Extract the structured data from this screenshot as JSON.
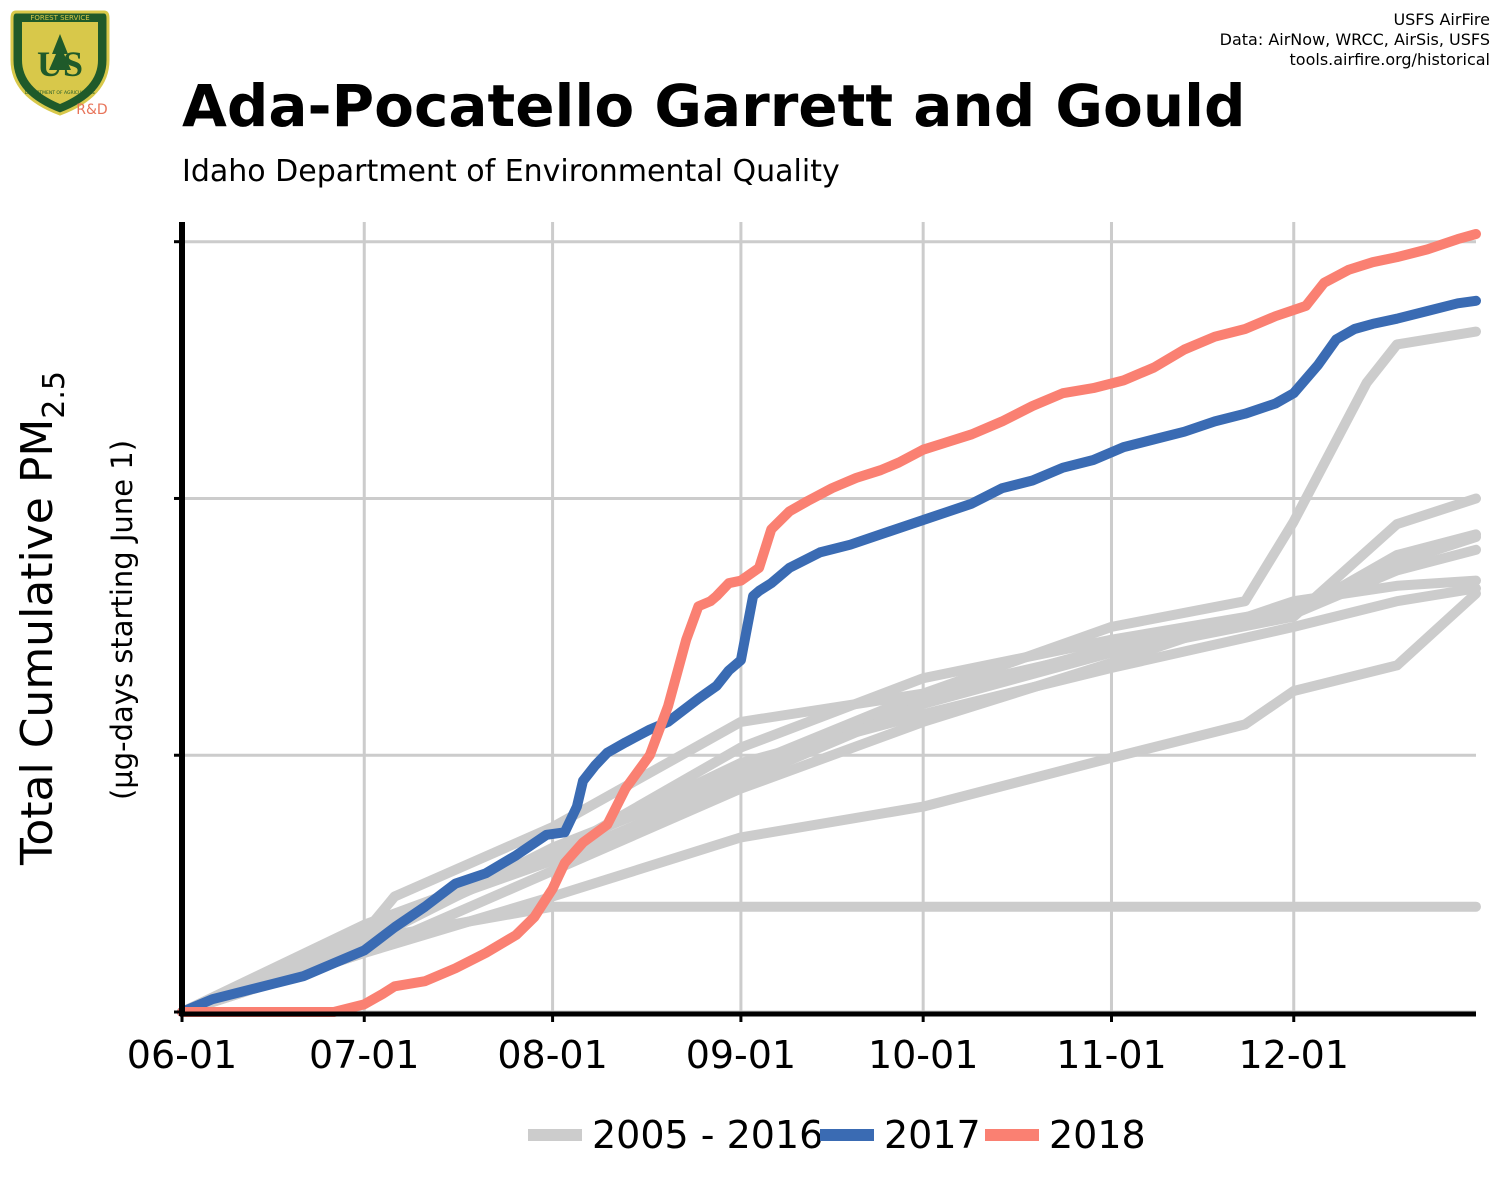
{
  "header": {
    "title": "Ada-Pocatello Garrett and Gould",
    "subtitle": "Idaho Department of Environmental Quality",
    "credits": [
      "USFS AirFire",
      "Data: AirNow, WRCC, AirSis, USFS",
      "tools.airfire.org/historical"
    ],
    "logo": {
      "top_text": "FOREST SERVICE",
      "letters": "US",
      "bottom_text": "DEPARTMENT OF AGRICULTURE",
      "tag": "R&D"
    }
  },
  "chart_data": {
    "type": "line",
    "title": "Ada-Pocatello Garrett and Gould",
    "subtitle": "Idaho Department of Environmental Quality",
    "ylabel_main": "Total Cumulative PM",
    "ylabel_sub": "2.5",
    "ylabel2": "(µg-days starting June 1)",
    "x_ticks": [
      "06-01",
      "07-01",
      "08-01",
      "09-01",
      "10-01",
      "11-01",
      "12-01"
    ],
    "x_tick_days": [
      0,
      30,
      61,
      92,
      122,
      153,
      183
    ],
    "xlim": [
      0,
      213
    ],
    "ylim": [
      0,
      3.03
    ],
    "y_gridlines": [
      0,
      1,
      2,
      3
    ],
    "y_tick_labels_shown": false,
    "grid": true,
    "legend": {
      "position": "bottom",
      "entries": [
        "2005 - 2016",
        "2017",
        "2018"
      ]
    },
    "colors": {
      "historical": "#cccccc",
      "2017": "#3a6bb3",
      "2018": "#fa8072"
    },
    "series": [
      {
        "name": "2018",
        "color": "#fa8072",
        "x": [
          0,
          25,
          30,
          33,
          35,
          40,
          45,
          50,
          55,
          58,
          61,
          63,
          66,
          70,
          73,
          77,
          80,
          83,
          85,
          87,
          88,
          90,
          92,
          95,
          97,
          100,
          103,
          107,
          111,
          115,
          118,
          122,
          126,
          130,
          135,
          140,
          145,
          150,
          155,
          160,
          165,
          170,
          175,
          180,
          185,
          188,
          192,
          196,
          200,
          205,
          210,
          213
        ],
        "y": [
          0,
          0,
          0.03,
          0.07,
          0.1,
          0.12,
          0.17,
          0.23,
          0.3,
          0.37,
          0.48,
          0.58,
          0.66,
          0.73,
          0.87,
          1.0,
          1.19,
          1.45,
          1.58,
          1.6,
          1.62,
          1.67,
          1.68,
          1.73,
          1.88,
          1.95,
          1.99,
          2.04,
          2.08,
          2.11,
          2.14,
          2.19,
          2.22,
          2.25,
          2.3,
          2.36,
          2.41,
          2.43,
          2.46,
          2.51,
          2.58,
          2.63,
          2.66,
          2.71,
          2.75,
          2.84,
          2.89,
          2.92,
          2.94,
          2.97,
          3.01,
          3.03
        ]
      },
      {
        "name": "2017",
        "color": "#3a6bb3",
        "x": [
          0,
          5,
          10,
          15,
          20,
          25,
          30,
          35,
          40,
          45,
          50,
          55,
          60,
          63,
          65,
          66,
          68,
          70,
          73,
          77,
          80,
          85,
          88,
          90,
          92,
          94,
          95,
          97,
          100,
          105,
          110,
          115,
          120,
          125,
          130,
          135,
          140,
          145,
          150,
          155,
          160,
          165,
          170,
          175,
          180,
          183,
          187,
          190,
          193,
          196,
          200,
          205,
          210,
          213
        ],
        "y": [
          0,
          0.05,
          0.08,
          0.11,
          0.14,
          0.19,
          0.24,
          0.33,
          0.41,
          0.5,
          0.54,
          0.61,
          0.69,
          0.7,
          0.8,
          0.9,
          0.96,
          1.01,
          1.05,
          1.1,
          1.13,
          1.22,
          1.27,
          1.33,
          1.37,
          1.62,
          1.64,
          1.67,
          1.73,
          1.79,
          1.82,
          1.86,
          1.9,
          1.94,
          1.98,
          2.04,
          2.07,
          2.12,
          2.15,
          2.2,
          2.23,
          2.26,
          2.3,
          2.33,
          2.37,
          2.41,
          2.52,
          2.62,
          2.66,
          2.68,
          2.7,
          2.73,
          2.76,
          2.77
        ]
      },
      {
        "name": "2005 - 2016",
        "color": "#cccccc",
        "x": [
          0,
          30,
          61,
          92,
          122,
          153,
          183,
          200,
          213
        ],
        "y": [
          0,
          0.29,
          0.62,
          0.97,
          1.16,
          1.34,
          1.5,
          1.6,
          1.65
        ]
      },
      {
        "name": "2005 - 2016",
        "color": "#cccccc",
        "x": [
          0,
          30,
          61,
          92,
          122,
          153,
          183,
          200,
          213
        ],
        "y": [
          0,
          0.34,
          0.61,
          1.03,
          1.3,
          1.45,
          1.57,
          1.75,
          1.85
        ]
      },
      {
        "name": "2005 - 2016",
        "color": "#cccccc",
        "x": [
          0,
          30,
          61,
          92,
          122,
          153,
          183,
          200,
          213
        ],
        "y": [
          0,
          0.27,
          0.64,
          0.93,
          1.22,
          1.42,
          1.55,
          1.72,
          1.8
        ]
      },
      {
        "name": "2005 - 2016",
        "color": "#cccccc",
        "x": [
          0,
          30,
          61,
          92,
          122,
          153,
          183,
          200,
          213
        ],
        "y": [
          0,
          0.23,
          0.55,
          0.87,
          1.13,
          1.36,
          1.6,
          1.66,
          1.68
        ]
      },
      {
        "name": "2005 - 2016",
        "color": "#cccccc",
        "x": [
          0,
          30,
          61,
          92,
          122,
          153,
          183,
          200,
          213
        ],
        "y": [
          0,
          0.33,
          0.59,
          0.9,
          1.2,
          1.4,
          1.54,
          1.9,
          2.0
        ]
      },
      {
        "name": "2005 - 2016",
        "color": "#cccccc",
        "x": [
          0,
          30,
          61,
          92,
          122,
          153,
          183,
          200,
          213
        ],
        "y": [
          0,
          0.31,
          0.63,
          0.95,
          1.24,
          1.41,
          1.55,
          1.78,
          1.86
        ]
      },
      {
        "name": "2005 - 2016",
        "color": "#cccccc",
        "x": [
          0,
          28,
          35,
          61,
          92,
          122,
          153,
          175,
          183,
          195,
          200,
          213
        ],
        "y": [
          0,
          0.25,
          0.45,
          0.72,
          1.13,
          1.24,
          1.5,
          1.6,
          1.91,
          2.45,
          2.6,
          2.65
        ]
      },
      {
        "name": "2005 - 2016",
        "color": "#cccccc",
        "x": [
          0,
          30,
          61,
          92,
          122,
          153,
          175,
          183,
          200,
          213
        ],
        "y": [
          0,
          0.23,
          0.45,
          0.68,
          0.8,
          0.99,
          1.12,
          1.25,
          1.35,
          1.63
        ]
      },
      {
        "name": "2005 - 2016",
        "color": "#cccccc",
        "x": [
          0,
          30,
          61,
          213
        ],
        "y": [
          0,
          0.28,
          0.41,
          0.41
        ]
      }
    ]
  }
}
